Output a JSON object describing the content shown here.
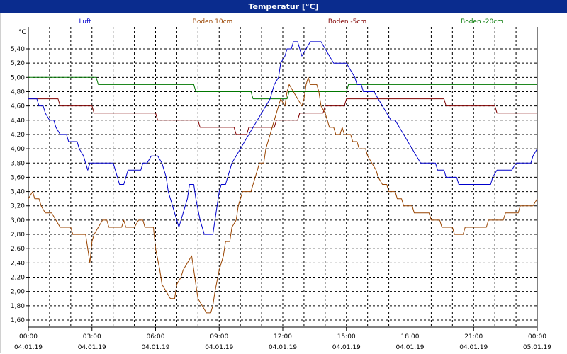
{
  "window": {
    "title": "Temperatur [°C]"
  },
  "chart_data": {
    "type": "line",
    "title": "Temperatur [°C]",
    "ylabel": "°C",
    "xlabel": "",
    "ylim": [
      1.6,
      5.6
    ],
    "xlim": [
      0,
      24
    ],
    "grid": true,
    "legend_position": "top",
    "y_ticks": [
      "1,60",
      "1,80",
      "2,00",
      "2,20",
      "2,40",
      "2,60",
      "2,80",
      "3,00",
      "3,20",
      "3,40",
      "3,60",
      "3,80",
      "4,00",
      "4,20",
      "4,40",
      "4,60",
      "4,80",
      "5,00",
      "5,20",
      "5,40"
    ],
    "x_ticks": [
      {
        "time": "00:00",
        "date": "04.01.19"
      },
      {
        "time": "03:00",
        "date": "04.01.19"
      },
      {
        "time": "06:00",
        "date": "04.01.19"
      },
      {
        "time": "09:00",
        "date": "04.01.19"
      },
      {
        "time": "12:00",
        "date": "04.01.19"
      },
      {
        "time": "15:00",
        "date": "04.01.19"
      },
      {
        "time": "18:00",
        "date": "04.01.19"
      },
      {
        "time": "21:00",
        "date": "04.01.19"
      },
      {
        "time": "00:00",
        "date": "05.01.19"
      }
    ],
    "series": [
      {
        "name": "Luft",
        "color": "#0000cc",
        "points": [
          [
            0,
            4.7
          ],
          [
            0.4,
            4.7
          ],
          [
            0.5,
            4.6
          ],
          [
            0.7,
            4.6
          ],
          [
            0.8,
            4.5
          ],
          [
            1.0,
            4.4
          ],
          [
            1.2,
            4.4
          ],
          [
            1.3,
            4.3
          ],
          [
            1.5,
            4.2
          ],
          [
            1.8,
            4.2
          ],
          [
            1.9,
            4.1
          ],
          [
            2.3,
            4.1
          ],
          [
            2.4,
            4.0
          ],
          [
            2.6,
            3.9
          ],
          [
            2.7,
            3.8
          ],
          [
            2.8,
            3.7
          ],
          [
            2.9,
            3.8
          ],
          [
            4.0,
            3.8
          ],
          [
            4.2,
            3.6
          ],
          [
            4.3,
            3.5
          ],
          [
            4.5,
            3.5
          ],
          [
            4.6,
            3.6
          ],
          [
            4.7,
            3.7
          ],
          [
            5.3,
            3.7
          ],
          [
            5.4,
            3.8
          ],
          [
            5.6,
            3.8
          ],
          [
            5.8,
            3.9
          ],
          [
            6.1,
            3.9
          ],
          [
            6.3,
            3.8
          ],
          [
            6.5,
            3.6
          ],
          [
            6.6,
            3.4
          ],
          [
            6.8,
            3.2
          ],
          [
            6.9,
            3.1
          ],
          [
            7.0,
            3.0
          ],
          [
            7.1,
            2.9
          ],
          [
            7.2,
            3.0
          ],
          [
            7.4,
            3.2
          ],
          [
            7.5,
            3.3
          ],
          [
            7.6,
            3.5
          ],
          [
            7.8,
            3.5
          ],
          [
            7.9,
            3.3
          ],
          [
            8.1,
            3.0
          ],
          [
            8.3,
            2.8
          ],
          [
            8.7,
            2.8
          ],
          [
            8.8,
            3.0
          ],
          [
            8.9,
            3.2
          ],
          [
            9.0,
            3.4
          ],
          [
            9.1,
            3.5
          ],
          [
            9.3,
            3.5
          ],
          [
            9.4,
            3.6
          ],
          [
            9.6,
            3.8
          ],
          [
            9.8,
            3.9
          ],
          [
            10.0,
            4.0
          ],
          [
            10.2,
            4.1
          ],
          [
            10.4,
            4.2
          ],
          [
            10.6,
            4.3
          ],
          [
            10.8,
            4.4
          ],
          [
            11.0,
            4.5
          ],
          [
            11.2,
            4.6
          ],
          [
            11.4,
            4.7
          ],
          [
            11.5,
            4.8
          ],
          [
            11.6,
            4.9
          ],
          [
            11.8,
            5.0
          ],
          [
            11.9,
            5.2
          ],
          [
            12.1,
            5.3
          ],
          [
            12.2,
            5.4
          ],
          [
            12.4,
            5.4
          ],
          [
            12.5,
            5.5
          ],
          [
            12.7,
            5.5
          ],
          [
            12.9,
            5.3
          ],
          [
            13.1,
            5.4
          ],
          [
            13.3,
            5.5
          ],
          [
            13.8,
            5.5
          ],
          [
            14.0,
            5.4
          ],
          [
            14.2,
            5.3
          ],
          [
            14.4,
            5.2
          ],
          [
            14.7,
            5.2
          ],
          [
            15.0,
            5.2
          ],
          [
            15.2,
            5.1
          ],
          [
            15.4,
            5.0
          ],
          [
            15.5,
            4.9
          ],
          [
            15.7,
            4.9
          ],
          [
            15.8,
            4.8
          ],
          [
            16.3,
            4.8
          ],
          [
            16.5,
            4.7
          ],
          [
            16.7,
            4.6
          ],
          [
            16.9,
            4.5
          ],
          [
            17.1,
            4.4
          ],
          [
            17.3,
            4.4
          ],
          [
            17.5,
            4.3
          ],
          [
            17.7,
            4.2
          ],
          [
            17.9,
            4.1
          ],
          [
            18.1,
            4.0
          ],
          [
            18.3,
            3.9
          ],
          [
            18.5,
            3.8
          ],
          [
            19.2,
            3.8
          ],
          [
            19.3,
            3.7
          ],
          [
            19.6,
            3.7
          ],
          [
            19.7,
            3.6
          ],
          [
            20.2,
            3.6
          ],
          [
            20.3,
            3.5
          ],
          [
            21.8,
            3.5
          ],
          [
            21.9,
            3.6
          ],
          [
            22.1,
            3.7
          ],
          [
            22.8,
            3.7
          ],
          [
            23.0,
            3.8
          ],
          [
            23.7,
            3.8
          ],
          [
            23.8,
            3.9
          ],
          [
            24.0,
            4.0
          ]
        ]
      },
      {
        "name": "Boden 10cm",
        "color": "#994400",
        "points": [
          [
            0,
            3.3
          ],
          [
            0.2,
            3.4
          ],
          [
            0.3,
            3.3
          ],
          [
            0.5,
            3.3
          ],
          [
            0.6,
            3.2
          ],
          [
            0.8,
            3.1
          ],
          [
            1.1,
            3.1
          ],
          [
            1.3,
            3.0
          ],
          [
            1.5,
            2.9
          ],
          [
            2.0,
            2.9
          ],
          [
            2.1,
            2.8
          ],
          [
            2.7,
            2.8
          ],
          [
            2.8,
            2.6
          ],
          [
            2.9,
            2.4
          ],
          [
            3.0,
            2.7
          ],
          [
            3.1,
            2.8
          ],
          [
            3.3,
            2.9
          ],
          [
            3.5,
            3.0
          ],
          [
            3.7,
            3.0
          ],
          [
            3.8,
            2.9
          ],
          [
            4.4,
            2.9
          ],
          [
            4.5,
            3.0
          ],
          [
            4.6,
            2.9
          ],
          [
            5.0,
            2.9
          ],
          [
            5.2,
            3.0
          ],
          [
            5.4,
            3.0
          ],
          [
            5.5,
            2.9
          ],
          [
            5.9,
            2.9
          ],
          [
            6.0,
            2.6
          ],
          [
            6.2,
            2.3
          ],
          [
            6.3,
            2.1
          ],
          [
            6.5,
            2.0
          ],
          [
            6.7,
            1.9
          ],
          [
            6.9,
            1.9
          ],
          [
            7.0,
            2.1
          ],
          [
            7.2,
            2.2
          ],
          [
            7.3,
            2.3
          ],
          [
            7.5,
            2.4
          ],
          [
            7.7,
            2.5
          ],
          [
            7.8,
            2.3
          ],
          [
            7.9,
            2.1
          ],
          [
            8.0,
            1.9
          ],
          [
            8.2,
            1.8
          ],
          [
            8.4,
            1.7
          ],
          [
            8.6,
            1.7
          ],
          [
            8.7,
            1.8
          ],
          [
            8.8,
            2.0
          ],
          [
            9.0,
            2.3
          ],
          [
            9.2,
            2.5
          ],
          [
            9.3,
            2.7
          ],
          [
            9.5,
            2.7
          ],
          [
            9.6,
            2.9
          ],
          [
            9.8,
            3.0
          ],
          [
            9.9,
            3.2
          ],
          [
            10.0,
            3.3
          ],
          [
            10.1,
            3.4
          ],
          [
            10.5,
            3.4
          ],
          [
            10.6,
            3.5
          ],
          [
            10.7,
            3.6
          ],
          [
            10.8,
            3.7
          ],
          [
            10.9,
            3.8
          ],
          [
            11.1,
            3.8
          ],
          [
            11.2,
            4.0
          ],
          [
            11.4,
            4.2
          ],
          [
            11.5,
            4.3
          ],
          [
            11.6,
            4.4
          ],
          [
            11.8,
            4.6
          ],
          [
            11.9,
            4.7
          ],
          [
            12.1,
            4.6
          ],
          [
            12.2,
            4.8
          ],
          [
            12.3,
            4.9
          ],
          [
            12.5,
            4.8
          ],
          [
            12.7,
            4.7
          ],
          [
            12.9,
            4.6
          ],
          [
            13.0,
            4.7
          ],
          [
            13.1,
            4.9
          ],
          [
            13.2,
            5.0
          ],
          [
            13.3,
            4.9
          ],
          [
            13.6,
            4.9
          ],
          [
            13.7,
            4.8
          ],
          [
            13.8,
            4.6
          ],
          [
            14.0,
            4.5
          ],
          [
            14.1,
            4.4
          ],
          [
            14.2,
            4.3
          ],
          [
            14.4,
            4.3
          ],
          [
            14.5,
            4.2
          ],
          [
            14.7,
            4.2
          ],
          [
            14.8,
            4.3
          ],
          [
            14.9,
            4.2
          ],
          [
            15.2,
            4.2
          ],
          [
            15.3,
            4.1
          ],
          [
            15.5,
            4.1
          ],
          [
            15.6,
            4.0
          ],
          [
            15.9,
            4.0
          ],
          [
            16.0,
            3.9
          ],
          [
            16.2,
            3.8
          ],
          [
            16.4,
            3.7
          ],
          [
            16.5,
            3.6
          ],
          [
            16.7,
            3.5
          ],
          [
            16.9,
            3.5
          ],
          [
            17.0,
            3.4
          ],
          [
            17.3,
            3.4
          ],
          [
            17.4,
            3.3
          ],
          [
            17.6,
            3.3
          ],
          [
            17.7,
            3.2
          ],
          [
            18.1,
            3.2
          ],
          [
            18.2,
            3.1
          ],
          [
            18.9,
            3.1
          ],
          [
            19.0,
            3.0
          ],
          [
            19.4,
            3.0
          ],
          [
            19.5,
            2.9
          ],
          [
            20.0,
            2.9
          ],
          [
            20.1,
            2.8
          ],
          [
            20.5,
            2.8
          ],
          [
            20.6,
            2.9
          ],
          [
            21.6,
            2.9
          ],
          [
            21.7,
            3.0
          ],
          [
            22.4,
            3.0
          ],
          [
            22.5,
            3.1
          ],
          [
            23.1,
            3.1
          ],
          [
            23.2,
            3.2
          ],
          [
            23.8,
            3.2
          ],
          [
            24.0,
            3.3
          ]
        ]
      },
      {
        "name": "Boden -5cm",
        "color": "#800000",
        "points": [
          [
            0,
            4.7
          ],
          [
            1.4,
            4.7
          ],
          [
            1.5,
            4.6
          ],
          [
            3.0,
            4.6
          ],
          [
            3.1,
            4.5
          ],
          [
            6.0,
            4.5
          ],
          [
            6.1,
            4.4
          ],
          [
            8.0,
            4.4
          ],
          [
            8.1,
            4.3
          ],
          [
            9.7,
            4.3
          ],
          [
            9.8,
            4.2
          ],
          [
            10.3,
            4.2
          ],
          [
            10.4,
            4.3
          ],
          [
            11.6,
            4.3
          ],
          [
            11.7,
            4.4
          ],
          [
            12.7,
            4.4
          ],
          [
            12.8,
            4.5
          ],
          [
            13.9,
            4.5
          ],
          [
            14.0,
            4.6
          ],
          [
            14.9,
            4.6
          ],
          [
            15.0,
            4.7
          ],
          [
            19.6,
            4.7
          ],
          [
            19.7,
            4.6
          ],
          [
            22.0,
            4.6
          ],
          [
            22.1,
            4.5
          ],
          [
            24.0,
            4.5
          ]
        ]
      },
      {
        "name": "Boden -20cm",
        "color": "#007700",
        "points": [
          [
            0,
            5.0
          ],
          [
            3.2,
            5.0
          ],
          [
            3.3,
            4.9
          ],
          [
            7.8,
            4.9
          ],
          [
            7.9,
            4.8
          ],
          [
            10.5,
            4.8
          ],
          [
            10.6,
            4.7
          ],
          [
            12.2,
            4.7
          ],
          [
            12.3,
            4.8
          ],
          [
            15.0,
            4.8
          ],
          [
            15.1,
            4.9
          ],
          [
            24.0,
            4.9
          ]
        ]
      }
    ]
  }
}
